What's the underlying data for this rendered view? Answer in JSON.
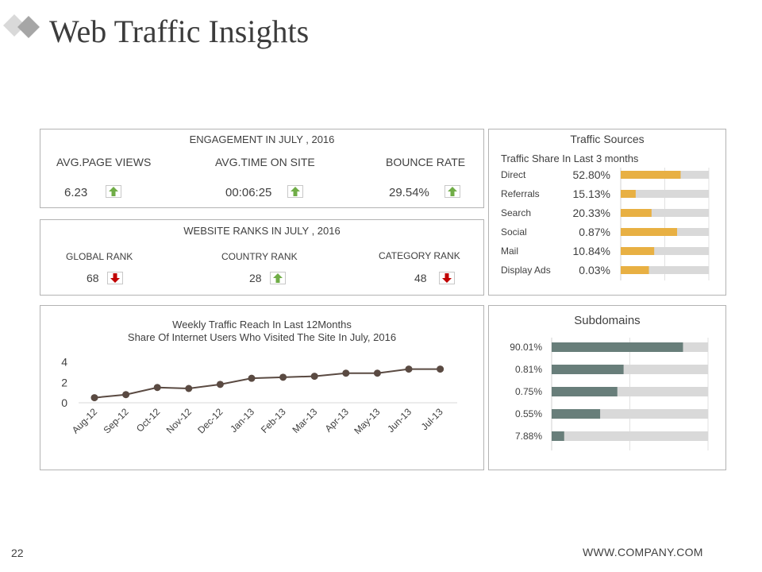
{
  "header": {
    "title": "Web Traffic Insights"
  },
  "colors": {
    "up": "#70ad47",
    "down": "#c00000",
    "sources_bar": "#e8b043",
    "subdomain_bar": "#687e7a",
    "track": "#d9d9d9",
    "line": "#5a4a42"
  },
  "engagement": {
    "title": "ENGAGEMENT IN JULY , 2016",
    "metrics": [
      {
        "label": "AVG.PAGE VIEWS",
        "value": "6.23",
        "trend": "up"
      },
      {
        "label": "AVG.TIME ON SITE",
        "value": "00:06:25",
        "trend": "up"
      },
      {
        "label": "BOUNCE RATE",
        "value": "29.54%",
        "trend": "up"
      }
    ]
  },
  "ranks": {
    "title": "WEBSITE RANKS IN JULY , 2016",
    "items": [
      {
        "label": "GLOBAL RANK",
        "value": "68",
        "trend": "down"
      },
      {
        "label": "COUNTRY RANK",
        "value": "28",
        "trend": "up"
      },
      {
        "label": "CATEGORY RANK",
        "value": "48",
        "trend": "down"
      }
    ]
  },
  "traffic_sources": {
    "title": "Traffic Sources",
    "subtitle": "Traffic Share In Last 3 months",
    "items": [
      {
        "label": "Direct",
        "value": "52.80%",
        "fill": 0.68
      },
      {
        "label": "Referrals",
        "value": "15.13%",
        "fill": 0.17
      },
      {
        "label": "Search",
        "value": "20.33%",
        "fill": 0.35
      },
      {
        "label": "Social",
        "value": "0.87%",
        "fill": 0.64
      },
      {
        "label": "Mail",
        "value": "10.84%",
        "fill": 0.38
      },
      {
        "label": "Display Ads",
        "value": "0.03%",
        "fill": 0.32
      }
    ]
  },
  "subdomains": {
    "title": "Subdomains",
    "items": [
      {
        "label": "90.01%",
        "fill": 0.84
      },
      {
        "label": "0.81%",
        "fill": 0.46
      },
      {
        "label": "0.75%",
        "fill": 0.42
      },
      {
        "label": "0.55%",
        "fill": 0.31
      },
      {
        "label": "7.88%",
        "fill": 0.08
      }
    ]
  },
  "chart_data": {
    "type": "line",
    "title": "Weekly Traffic Reach In Last 12Months",
    "subtitle": "Share Of Internet Users Who Visited The Site In July, 2016",
    "categories": [
      "Aug-12",
      "Sep-12",
      "Oct-12",
      "Nov-12",
      "Dec-12",
      "Jan-13",
      "Feb-13",
      "Mar-13",
      "Apr-13",
      "May-13",
      "Jun-13",
      "Jul-13"
    ],
    "series": [
      {
        "values": [
          0.5,
          0.8,
          1.5,
          1.4,
          1.8,
          2.4,
          2.5,
          2.6,
          2.9,
          2.9,
          3.3,
          3.3
        ]
      }
    ],
    "yticks": [
      0,
      2,
      4
    ],
    "ylim": [
      0,
      4.2
    ],
    "grid": false,
    "legend": "none"
  },
  "footer": {
    "page_number": "22",
    "url": "WWW.COMPANY.COM"
  }
}
